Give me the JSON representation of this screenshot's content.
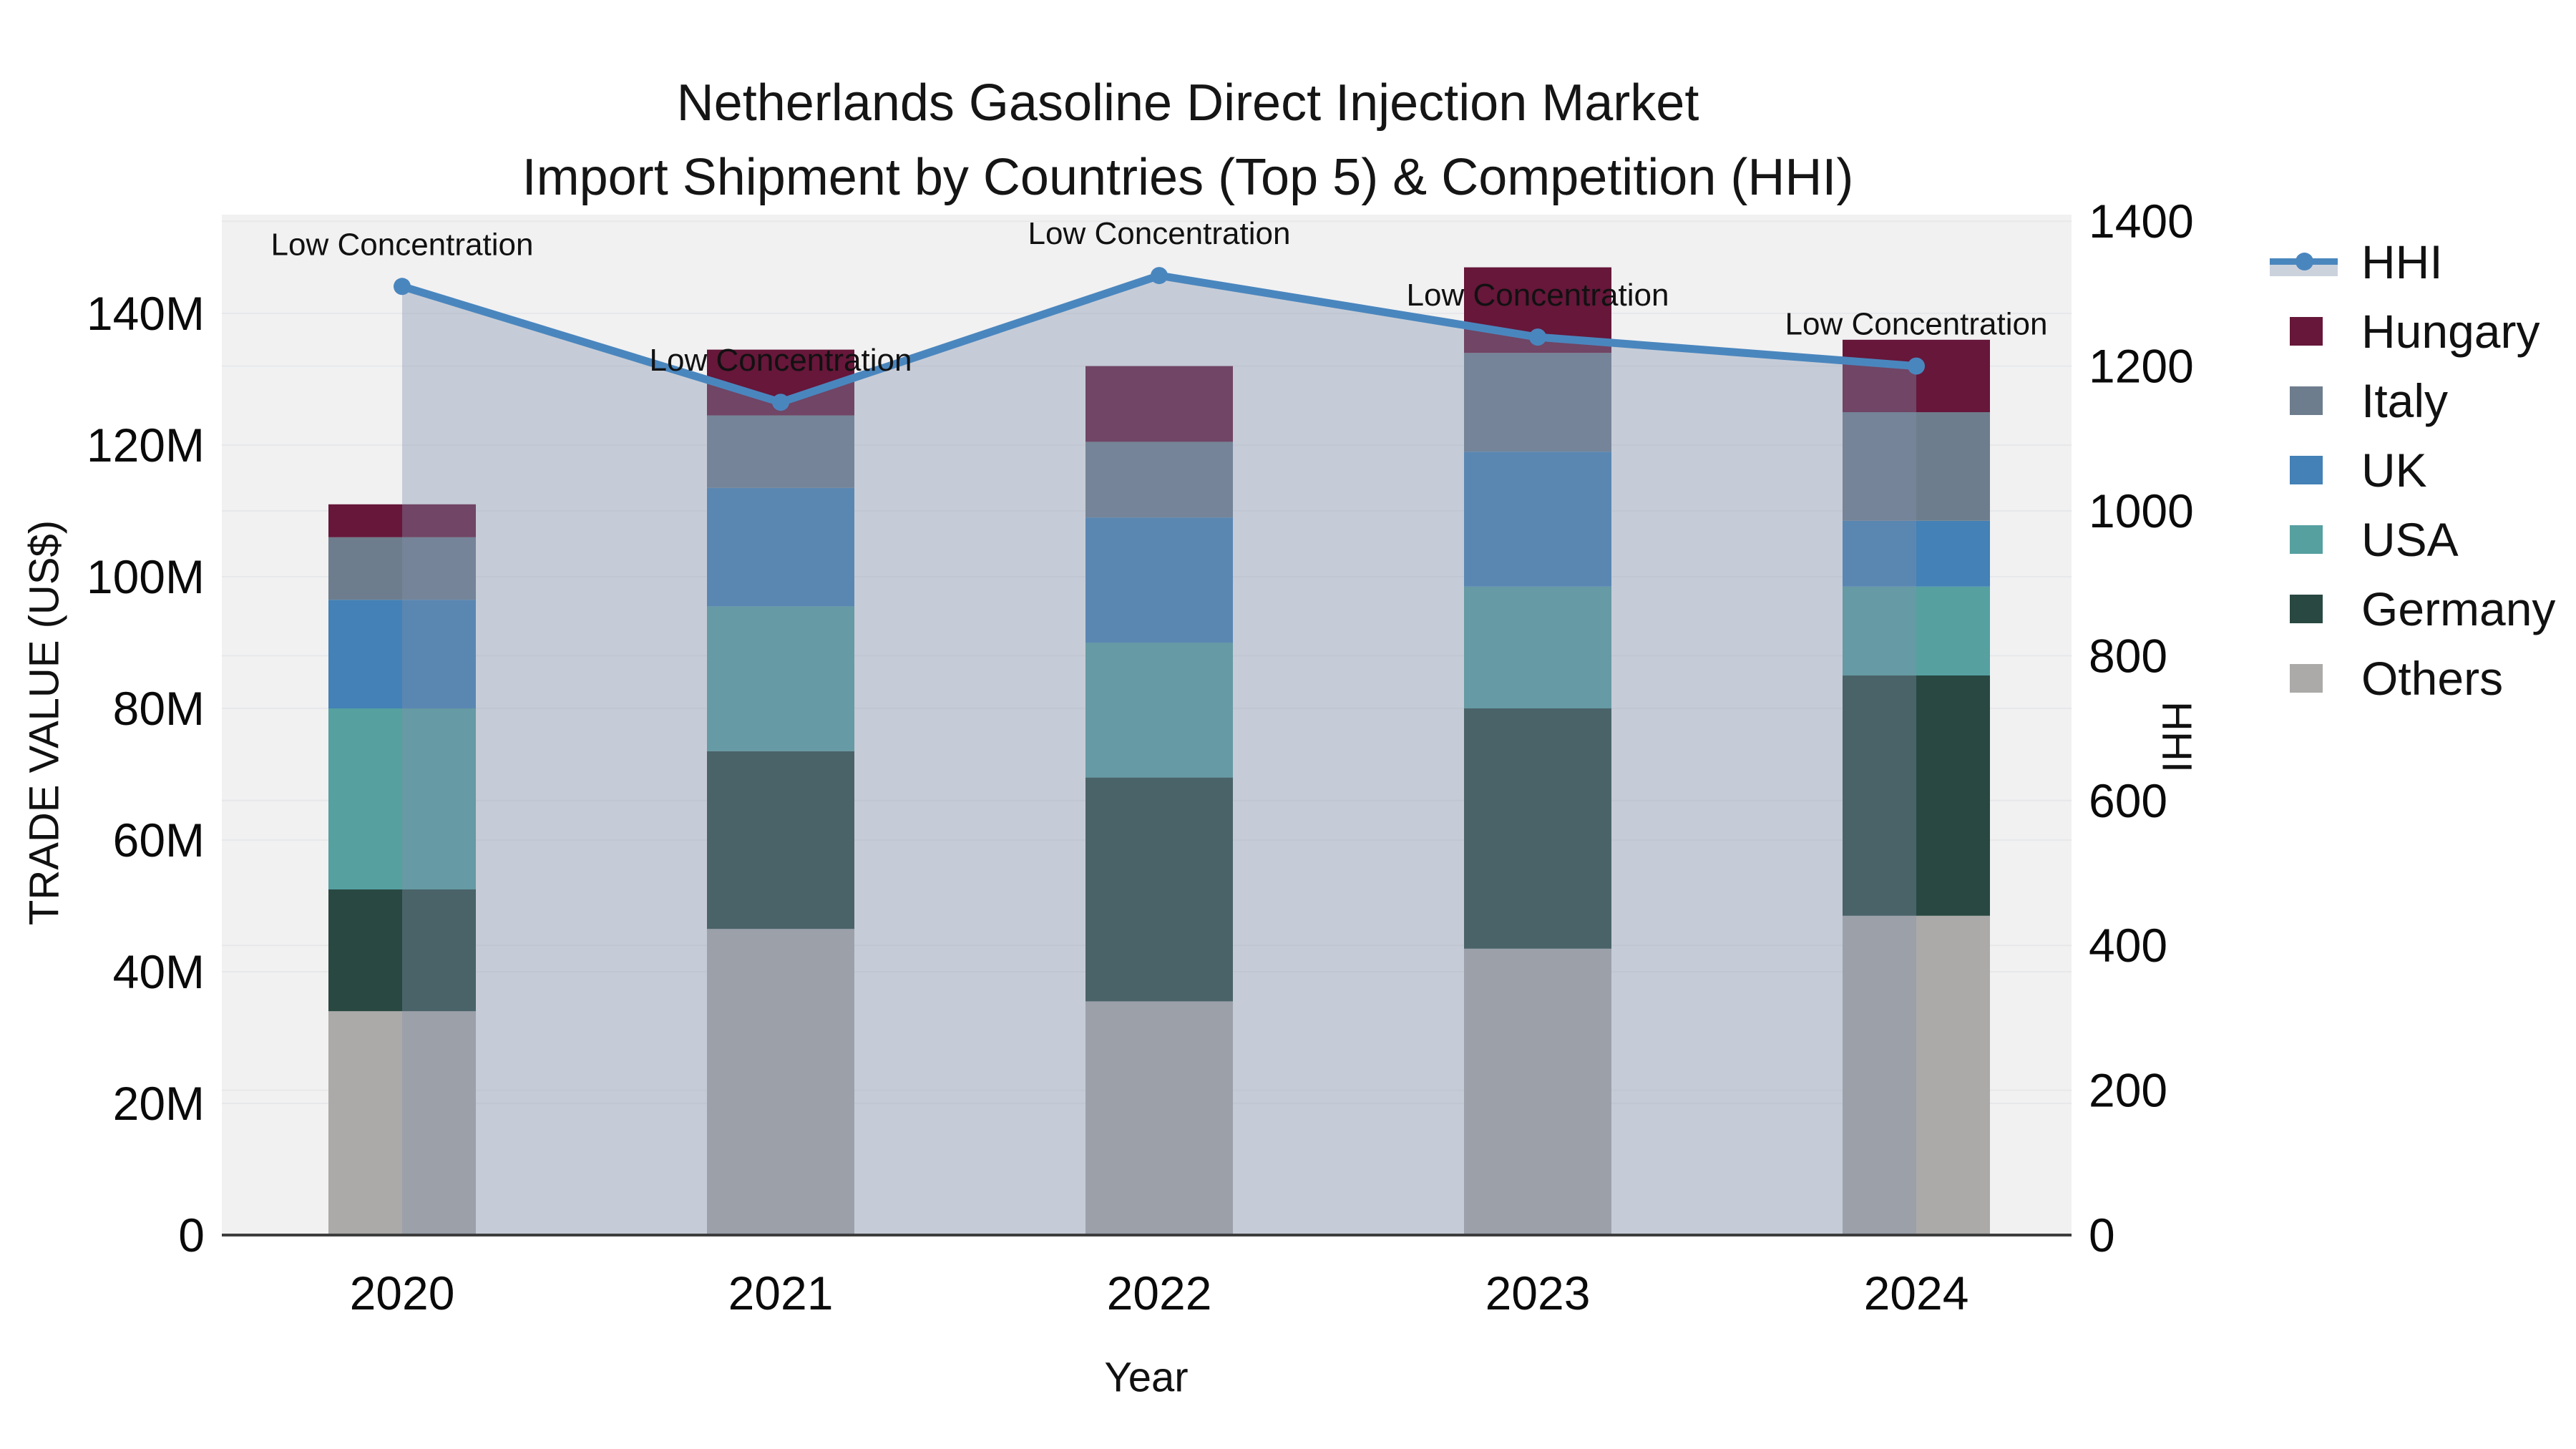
{
  "title": {
    "line1": "Netherlands Gasoline Direct Injection Market",
    "line2": "Import Shipment by Countries (Top 5) & Competition (HHI)"
  },
  "axes": {
    "x": {
      "title": "Year",
      "tick_labels": [
        "2020",
        "2021",
        "2022",
        "2023",
        "2024"
      ]
    },
    "y_left": {
      "title": "TRADE VALUE (US$)",
      "tick_labels": [
        "0",
        "20M",
        "40M",
        "60M",
        "80M",
        "100M",
        "120M",
        "140M"
      ],
      "tick_step_millions": 20
    },
    "y_right": {
      "title": "HHI",
      "tick_labels": [
        "0",
        "200",
        "400",
        "600",
        "800",
        "1000",
        "1200",
        "1400"
      ],
      "tick_step": 200
    }
  },
  "legend": {
    "items": [
      {
        "label": "HHI",
        "type": "line",
        "key": "hhi"
      },
      {
        "label": "Hungary",
        "type": "swatch",
        "key": "Hungary"
      },
      {
        "label": "Italy",
        "type": "swatch",
        "key": "Italy"
      },
      {
        "label": "UK",
        "type": "swatch",
        "key": "UK"
      },
      {
        "label": "USA",
        "type": "swatch",
        "key": "USA"
      },
      {
        "label": "Germany",
        "type": "swatch",
        "key": "Germany"
      },
      {
        "label": "Others",
        "type": "swatch",
        "key": "Others"
      }
    ]
  },
  "colors": {
    "plot_bg": "#f1f1f2",
    "grid": "#e7e8ea",
    "axis_line": "#3d3d3d",
    "hhi_line": "#4a86be",
    "hhi_fill": "rgba(128,144,170,0.38)",
    "annotation_text": "#111111",
    "series": {
      "Hungary": "#66173a",
      "Italy": "#6e7d8d",
      "UK": "#4381b6",
      "USA": "#56a0a0",
      "Germany": "#294842",
      "Others": "#abaaa8"
    }
  },
  "chart_data": {
    "type": "bar+line",
    "title": "Netherlands Gasoline Direct Injection Market — Import Shipment by Countries (Top 5) & Competition (HHI)",
    "xlabel": "Year",
    "ylabel_left": "TRADE VALUE (US$)",
    "ylabel_right": "HHI",
    "categories": [
      "2020",
      "2021",
      "2022",
      "2023",
      "2024"
    ],
    "bar_unit": "million US$",
    "stack_order_bottom_to_top": [
      "Others",
      "Germany",
      "USA",
      "UK",
      "Italy",
      "Hungary"
    ],
    "series": [
      {
        "name": "Others",
        "values": [
          34.0,
          46.5,
          35.5,
          43.5,
          48.5
        ]
      },
      {
        "name": "Germany",
        "values": [
          18.5,
          27.0,
          34.0,
          36.5,
          36.5
        ]
      },
      {
        "name": "USA",
        "values": [
          27.5,
          22.0,
          20.5,
          18.5,
          13.5
        ]
      },
      {
        "name": "UK",
        "values": [
          16.5,
          18.0,
          19.0,
          20.5,
          10.0
        ]
      },
      {
        "name": "Italy",
        "values": [
          9.5,
          11.0,
          11.5,
          15.0,
          16.5
        ]
      },
      {
        "name": "Hungary",
        "values": [
          5.0,
          10.0,
          11.5,
          13.0,
          11.0
        ]
      }
    ],
    "bar_totals": [
      111.0,
      134.5,
      132.0,
      147.0,
      136.0
    ],
    "line_series": {
      "name": "HHI",
      "values": [
        1310,
        1150,
        1325,
        1240,
        1200
      ],
      "annotations": [
        "Low Concentration",
        "Low Concentration",
        "Low Concentration",
        "Low Concentration",
        "Low Concentration"
      ],
      "area_fill_under_line": true
    },
    "ylim_left_millions": [
      0,
      155
    ],
    "ylim_right": [
      0,
      1409
    ],
    "grid": true,
    "legend_position": "right"
  }
}
